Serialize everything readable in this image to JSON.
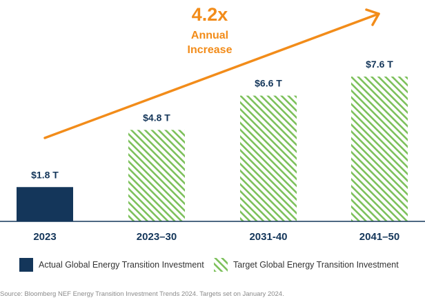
{
  "colors": {
    "actual": "#14365a",
    "target_stripe": "#7cc05a",
    "accent": "#f28c1a",
    "label": "#14365a",
    "axis": "#14365a"
  },
  "chart_data": {
    "type": "bar",
    "title": "",
    "xlabel": "",
    "ylabel": "",
    "ylim": [
      0,
      8.5
    ],
    "grid": false,
    "legend_position": "bottom",
    "categories": [
      "2023",
      "2023–30",
      "2031-40",
      "2041–50"
    ],
    "values": [
      1.8,
      4.8,
      6.6,
      7.6
    ],
    "data_labels": [
      "$1.8 T",
      "$4.8 T",
      "$6.6 T",
      "$7.6 T"
    ],
    "bar_series": [
      "actual",
      "target",
      "target",
      "target"
    ],
    "annotation": {
      "multiplier": "4.2x",
      "line1": "Annual",
      "line2": "Increase"
    }
  },
  "legend": {
    "actual_label": "Actual Global Energy Transition Investment",
    "target_label": "Target Global Energy Transition Investment"
  },
  "source": "Source: Bloomberg NEF Energy Transition Investment Trends 2024. Targets set on January 2024."
}
